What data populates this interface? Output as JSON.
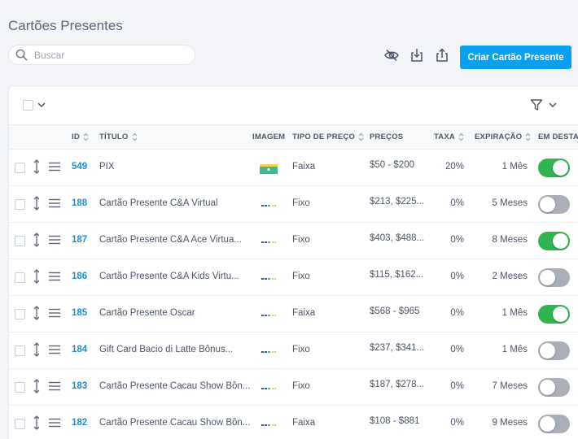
{
  "page": {
    "title": "Cartões Presentes"
  },
  "search": {
    "placeholder": "Buscar",
    "value": ""
  },
  "toolbar": {
    "create_label": "Criar Cartão Presente"
  },
  "columns": {
    "id": "ID",
    "title": "TÍTULO",
    "image": "IMAGEM",
    "price_type": "TIPO DE PREÇO",
    "prices": "PREÇOS",
    "fee": "TAXA",
    "expiration": "EXPIRAÇÃO",
    "featured": "EM DESTA"
  },
  "rows": [
    {
      "id": "549",
      "title": "PIX",
      "price_type": "Faixa",
      "prices": "$50 - $200",
      "fee": "20%",
      "expiration": "1 Mês",
      "featured": true,
      "image": "pix-thumb"
    },
    {
      "id": "188",
      "title": "Cartão Presente C&A Virtual",
      "price_type": "Fixo",
      "prices": "$213, $225...",
      "fee": "0%",
      "expiration": "5 Meses",
      "featured": false,
      "image": "logo-thumb"
    },
    {
      "id": "187",
      "title": "Cartão Presente C&A Ace Virtua...",
      "price_type": "Fixo",
      "prices": "$403, $488...",
      "fee": "0%",
      "expiration": "8 Meses",
      "featured": true,
      "image": "logo-thumb"
    },
    {
      "id": "186",
      "title": "Cartão Presente C&A Kids Virtu...",
      "price_type": "Fixo",
      "prices": "$115, $162...",
      "fee": "0%",
      "expiration": "2 Meses",
      "featured": false,
      "image": "logo-thumb"
    },
    {
      "id": "185",
      "title": "Cartão Presente Oscar",
      "price_type": "Faixa",
      "prices": "$568 - $965",
      "fee": "0%",
      "expiration": "1 Mês",
      "featured": true,
      "image": "logo-thumb"
    },
    {
      "id": "184",
      "title": "Gift Card Bacio di Latte Bônus...",
      "price_type": "Fixo",
      "prices": "$237, $341...",
      "fee": "0%",
      "expiration": "1 Mês",
      "featured": false,
      "image": "logo-thumb"
    },
    {
      "id": "183",
      "title": "Cartão Presente Cacau Show Bôn...",
      "price_type": "Fixo",
      "prices": "$187, $278...",
      "fee": "0%",
      "expiration": "7 Meses",
      "featured": false,
      "image": "logo-thumb"
    },
    {
      "id": "182",
      "title": "Cartão Presente Cacau Show Bôn...",
      "price_type": "Faixa",
      "prices": "$108 - $881",
      "fee": "0%",
      "expiration": "9 Meses",
      "featured": false,
      "image": "logo-thumb"
    }
  ],
  "colors": {
    "accent": "#0aa0f0",
    "id_link": "#1a8fd6",
    "toggle_on": "#2fb44f",
    "toggle_off": "#a9aeb7"
  },
  "icons": [
    "search-icon",
    "hide-icon",
    "download-icon",
    "share-icon",
    "chevron-down-icon",
    "filter-icon",
    "sort-icon",
    "move-icon",
    "drag-handle-icon"
  ]
}
